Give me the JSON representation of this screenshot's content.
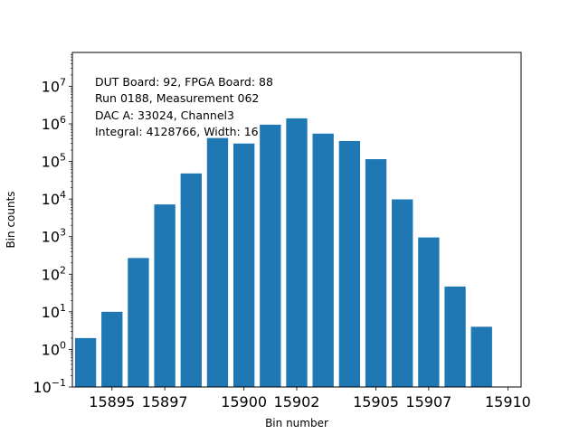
{
  "chart_data": {
    "type": "bar",
    "title": "",
    "xlabel": "Bin number",
    "ylabel": "Bin counts",
    "yscale": "log",
    "ylim_exp": [
      -1,
      7.9
    ],
    "xlim": [
      15893.5,
      15910.5
    ],
    "bar_color": "#1f77b4",
    "bar_width": 0.8,
    "x": [
      15894,
      15895,
      15896,
      15897,
      15898,
      15899,
      15900,
      15901,
      15902,
      15903,
      15904,
      15905,
      15906,
      15907,
      15908,
      15909
    ],
    "values": [
      2,
      10,
      270,
      7200,
      48000,
      420000,
      300000,
      950000,
      1400000,
      550000,
      350000,
      115000,
      9800,
      950,
      47,
      4
    ],
    "x_ticks": [
      {
        "value": 15895,
        "label": "15895"
      },
      {
        "value": 15897,
        "label": "15897"
      },
      {
        "value": 15900,
        "label": "15900"
      },
      {
        "value": 15902,
        "label": "15902"
      },
      {
        "value": 15905,
        "label": "15905"
      },
      {
        "value": 15907,
        "label": "15907"
      },
      {
        "value": 15910,
        "label": "15910"
      }
    ],
    "y_ticks": [
      {
        "exp": -1,
        "base": "10",
        "sup": "−1"
      },
      {
        "exp": 0,
        "base": "10",
        "sup": "0"
      },
      {
        "exp": 1,
        "base": "10",
        "sup": "1"
      },
      {
        "exp": 2,
        "base": "10",
        "sup": "2"
      },
      {
        "exp": 3,
        "base": "10",
        "sup": "3"
      },
      {
        "exp": 4,
        "base": "10",
        "sup": "4"
      },
      {
        "exp": 5,
        "base": "10",
        "sup": "5"
      },
      {
        "exp": 6,
        "base": "10",
        "sup": "6"
      },
      {
        "exp": 7,
        "base": "10",
        "sup": "7"
      }
    ],
    "annotations": [
      "DUT Board: 92, FPGA Board: 88",
      "Run 0188, Measurement 062",
      "DAC A: 33024, Channel3",
      "Integral: 4128766, Width: 16"
    ]
  }
}
